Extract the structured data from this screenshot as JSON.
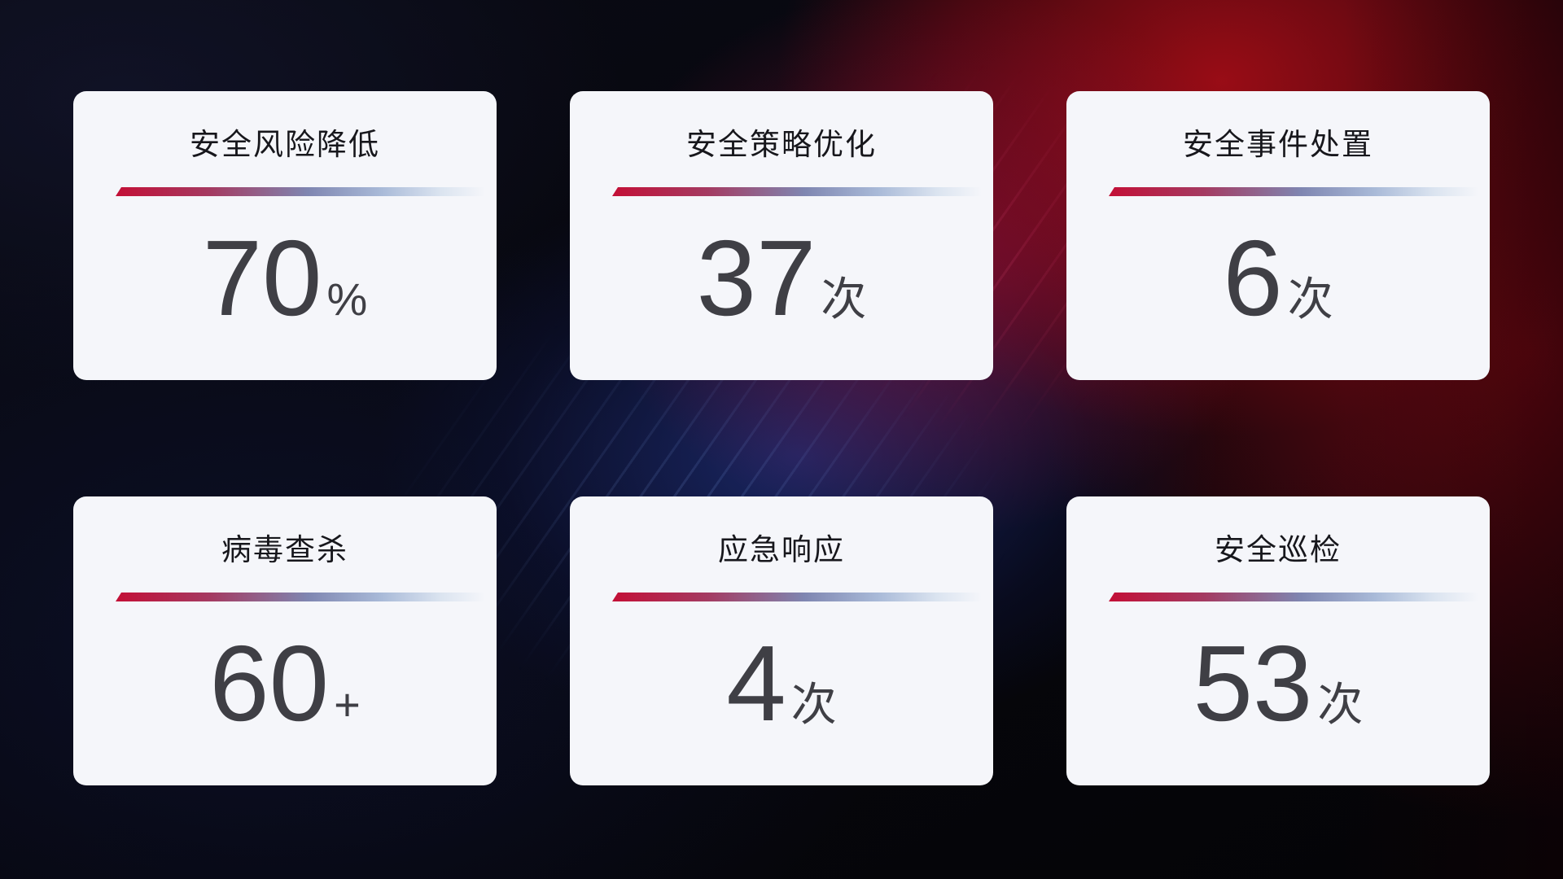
{
  "cards": [
    {
      "title": "安全风险降低",
      "value": "70",
      "suffix": "%"
    },
    {
      "title": "安全策略优化",
      "value": "37",
      "suffix": "次"
    },
    {
      "title": "安全事件处置",
      "value": "6",
      "suffix": "次"
    },
    {
      "title": "病毒查杀",
      "value": "60",
      "suffix": "+"
    },
    {
      "title": "应急响应",
      "value": "4",
      "suffix": "次"
    },
    {
      "title": "安全巡检",
      "value": "53",
      "suffix": "次"
    }
  ],
  "colors": {
    "card_bg": "#f5f6fa",
    "title_color": "#17171c",
    "value_color": "#3f3f45",
    "line_red": "#c30f36",
    "line_mid": "#7f86b1",
    "line_end": "#dbe4f0",
    "bg_red": "#a00d16",
    "bg_crimson": "#b11243",
    "bg_blue": "#1c2a6e"
  }
}
